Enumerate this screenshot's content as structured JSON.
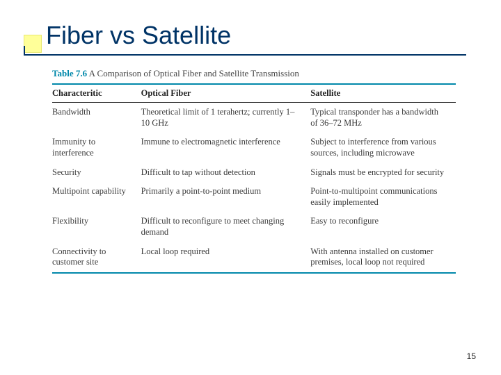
{
  "title": "Fiber vs Satellite",
  "table": {
    "label": "Table 7.6",
    "caption": "A Comparison of Optical Fiber and Satellite Transmission",
    "columns": [
      "Characteritic",
      "Optical Fiber",
      "Satellite"
    ],
    "rows": [
      [
        "Bandwidth",
        "Theoretical limit of 1 terahertz; currently 1–10 GHz",
        "Typical transponder has a bandwidth of 36–72 MHz"
      ],
      [
        "Immunity to interference",
        "Immune to electromagnetic interference",
        "Subject to interference from various sources, including microwave"
      ],
      [
        "Security",
        "Difficult to tap without detection",
        "Signals must be encrypted for security"
      ],
      [
        "Multipoint capability",
        "Primarily a point-to-point medium",
        "Point-to-multipoint communications easily implemented"
      ],
      [
        "Flexibility",
        "Difficult to reconfigure to meet changing demand",
        "Easy to reconfigure"
      ],
      [
        "Connectivity to customer site",
        "Local loop required",
        "With antenna installed on customer premises, local loop not required"
      ]
    ],
    "col_widths": [
      "22%",
      "42%",
      "36%"
    ],
    "accent_color": "#0088aa",
    "text_color": "#3a3a3a",
    "header_text_color": "#222222",
    "fontsize": 12.5
  },
  "page_number": "15",
  "style": {
    "title_color": "#003366",
    "title_fontsize": 36,
    "background": "#ffffff",
    "accent_box_color": "#ffff99"
  }
}
